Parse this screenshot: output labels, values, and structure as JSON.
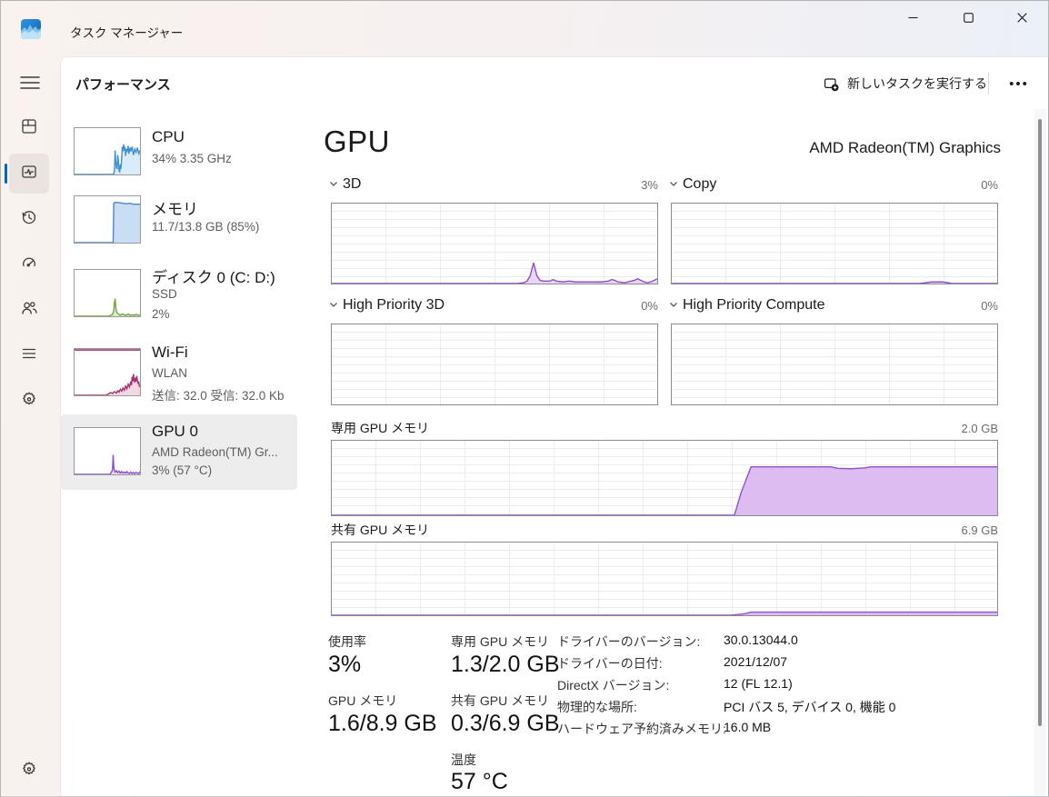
{
  "window": {
    "title": "タスク マネージャー"
  },
  "header": {
    "page_title": "パフォーマンス",
    "run_new_task_label": "新しいタスクを実行する",
    "more_label": "•••"
  },
  "left_panel": {
    "items": [
      {
        "title": "CPU",
        "line2": "34% 3.35 GHz",
        "line3": ""
      },
      {
        "title": "メモリ",
        "line2": "11.7/13.8 GB (85%)",
        "line3": ""
      },
      {
        "title": "ディスク 0 (C: D:)",
        "line2": "SSD",
        "line3": "2%"
      },
      {
        "title": "Wi-Fi",
        "line2": "WLAN",
        "line3": "送信: 32.0 受信: 32.0 Kb"
      },
      {
        "title": "GPU 0",
        "line2": "AMD Radeon(TM) Gr...",
        "line3": "3% (57 °C)"
      }
    ]
  },
  "main": {
    "title": "GPU",
    "subtitle": "AMD Radeon(TM) Graphics",
    "panels": [
      {
        "label": "3D",
        "value": "3%"
      },
      {
        "label": "Copy",
        "value": "0%"
      },
      {
        "label": "High Priority 3D",
        "value": "0%"
      },
      {
        "label": "High Priority Compute",
        "value": "0%"
      }
    ],
    "memory_sections": [
      {
        "label": "専用 GPU メモリ",
        "value": "2.0 GB"
      },
      {
        "label": "共有 GPU メモリ",
        "value": "6.9 GB"
      }
    ],
    "stats": [
      {
        "label": "使用率",
        "value": "3%"
      },
      {
        "label": "専用 GPU メモリ",
        "value": "1.3/2.0 GB"
      },
      {
        "label": "GPU メモリ",
        "value": "1.6/8.9 GB"
      },
      {
        "label": "共有 GPU メモリ",
        "value": "0.3/6.9 GB"
      },
      {
        "label": "温度",
        "value": "57 °C"
      }
    ],
    "driver_info": [
      {
        "label": "ドライバーのバージョン:",
        "value": "30.0.13044.0"
      },
      {
        "label": "ドライバーの日付:",
        "value": "2021/12/07"
      },
      {
        "label": "DirectX バージョン:",
        "value": "12 (FL 12.1)"
      },
      {
        "label": "物理的な場所:",
        "value": "PCI バス 5, デバイス 0, 機能 0"
      },
      {
        "label": "ハードウェア予約済みメモリ:",
        "value": "16.0 MB"
      }
    ]
  },
  "colors": {
    "accent": "#0067c0",
    "gpu_line": "#8e4ec7",
    "gpu_fill": "#e7d7f6",
    "cpu_line": "#4390ce",
    "cpu_fill": "#d9ecfa",
    "memory_line": "#4e86c8",
    "memory_fill": "#c9def4",
    "disk_line": "#76a23e",
    "disk_fill": "#dcead0",
    "wifi_line": "#a4336f",
    "wifi_fill": "#f2d7e5",
    "chart_grid": "#ececec",
    "chart_border": "#8b8b8b"
  },
  "chart_data": {
    "gpu_3d": {
      "type": "area",
      "title": "3D",
      "ylim": [
        0,
        100
      ],
      "unit": "%",
      "current": 3,
      "line": "#8e4ec7",
      "fill": "#e7d7f6",
      "points": [
        [
          0,
          0
        ],
        [
          57,
          0
        ],
        [
          59,
          1
        ],
        [
          60,
          3
        ],
        [
          61,
          10
        ],
        [
          62,
          26
        ],
        [
          63,
          10
        ],
        [
          64,
          4
        ],
        [
          65,
          3
        ],
        [
          67,
          3
        ],
        [
          68,
          5
        ],
        [
          69,
          3
        ],
        [
          71,
          2
        ],
        [
          73,
          3
        ],
        [
          75,
          2
        ],
        [
          77,
          2
        ],
        [
          79,
          2
        ],
        [
          81,
          2
        ],
        [
          83,
          2
        ],
        [
          85,
          3
        ],
        [
          86,
          5
        ],
        [
          87,
          4
        ],
        [
          88,
          2
        ],
        [
          90,
          1
        ],
        [
          91,
          2
        ],
        [
          93,
          4
        ],
        [
          94,
          6
        ],
        [
          95,
          4
        ],
        [
          96,
          2
        ],
        [
          97,
          1
        ],
        [
          98,
          2
        ],
        [
          99,
          4
        ],
        [
          100,
          6
        ]
      ]
    },
    "gpu_copy": {
      "type": "area",
      "title": "Copy",
      "ylim": [
        0,
        100
      ],
      "unit": "%",
      "current": 0,
      "line": "#8e4ec7",
      "fill": "#e7d7f6",
      "points": [
        [
          0,
          0
        ],
        [
          76,
          0
        ],
        [
          78,
          1
        ],
        [
          80,
          2
        ],
        [
          83,
          2
        ],
        [
          85,
          1
        ],
        [
          86,
          0
        ],
        [
          100,
          0
        ]
      ]
    },
    "gpu_hp3d": {
      "type": "area",
      "title": "High Priority 3D",
      "ylim": [
        0,
        100
      ],
      "unit": "%",
      "current": 0,
      "line": "#8e4ec7",
      "fill": "#e7d7f6",
      "points": []
    },
    "gpu_hpcompute": {
      "type": "area",
      "title": "High Priority Compute",
      "ylim": [
        0,
        100
      ],
      "unit": "%",
      "current": 0,
      "line": "#8e4ec7",
      "fill": "#e7d7f6",
      "points": []
    },
    "dedicated_memory": {
      "type": "area",
      "title": "専用 GPU メモリ",
      "ylim_gb": [
        0,
        2.0
      ],
      "current_gb": 1.3,
      "line": "#9353c9",
      "fill": "#dcbcf1",
      "points": [
        [
          0,
          0
        ],
        [
          60.5,
          0
        ],
        [
          61.5,
          30
        ],
        [
          63,
          65
        ],
        [
          75,
          65
        ],
        [
          76,
          63
        ],
        [
          78,
          62.5
        ],
        [
          80,
          63.5
        ],
        [
          81,
          65
        ],
        [
          100,
          65
        ]
      ]
    },
    "shared_memory": {
      "type": "area",
      "title": "共有 GPU メモリ",
      "ylim_gb": [
        0,
        6.9
      ],
      "current_gb": 0.3,
      "line": "#9353c9",
      "fill": "#dcbcf1",
      "points": [
        [
          0,
          0
        ],
        [
          60,
          0
        ],
        [
          62,
          2
        ],
        [
          63,
          4.3
        ],
        [
          100,
          4.3
        ]
      ]
    },
    "cpu_mini": {
      "type": "area",
      "title": "CPU",
      "ylim": [
        0,
        100
      ],
      "current": 34,
      "line": "#4390ce",
      "fill": "#d9ecfa",
      "points": [
        [
          0,
          0
        ],
        [
          60,
          0
        ],
        [
          61,
          10
        ],
        [
          62,
          52
        ],
        [
          63,
          28
        ],
        [
          64,
          15
        ],
        [
          65,
          12
        ],
        [
          66,
          42
        ],
        [
          67,
          30
        ],
        [
          68,
          8
        ],
        [
          69,
          6
        ],
        [
          70,
          22
        ],
        [
          71,
          12
        ],
        [
          73,
          60
        ],
        [
          74,
          50
        ],
        [
          75,
          65
        ],
        [
          76,
          52
        ],
        [
          77,
          60
        ],
        [
          78,
          40
        ],
        [
          79,
          55
        ],
        [
          80,
          48
        ],
        [
          82,
          62
        ],
        [
          83,
          45
        ],
        [
          85,
          58
        ],
        [
          86,
          50
        ],
        [
          88,
          60
        ],
        [
          90,
          42
        ],
        [
          92,
          55
        ],
        [
          94,
          48
        ],
        [
          96,
          58
        ],
        [
          98,
          45
        ],
        [
          100,
          52
        ]
      ]
    },
    "memory_mini": {
      "type": "area",
      "title": "メモリ",
      "ylim": [
        0,
        100
      ],
      "current": 85,
      "line": "#4e86c8",
      "fill": "#c9def4",
      "points": [
        [
          0,
          0
        ],
        [
          59,
          0
        ],
        [
          60,
          85
        ],
        [
          62,
          87
        ],
        [
          70,
          86
        ],
        [
          78,
          84
        ],
        [
          84,
          85
        ],
        [
          90,
          83
        ],
        [
          100,
          83
        ]
      ]
    },
    "disk_mini": {
      "type": "area",
      "title": "ディスク 0",
      "ylim": [
        0,
        100
      ],
      "current": 2,
      "line": "#76a23e",
      "fill": "#dcead0",
      "points": [
        [
          0,
          0
        ],
        [
          52,
          0
        ],
        [
          55,
          2
        ],
        [
          58,
          4
        ],
        [
          60,
          12
        ],
        [
          61,
          30
        ],
        [
          62,
          38
        ],
        [
          63,
          20
        ],
        [
          64,
          10
        ],
        [
          66,
          6
        ],
        [
          68,
          4
        ],
        [
          70,
          2
        ],
        [
          73,
          5
        ],
        [
          76,
          3
        ],
        [
          79,
          2
        ],
        [
          82,
          5
        ],
        [
          85,
          2
        ],
        [
          88,
          3
        ],
        [
          91,
          2
        ],
        [
          94,
          4
        ],
        [
          97,
          2
        ],
        [
          100,
          3
        ]
      ]
    },
    "wifi_mini": {
      "type": "area",
      "title": "Wi-Fi",
      "ylim": [
        0,
        100
      ],
      "topline": true,
      "line": "#a4336f",
      "fill": "#f2d7e5",
      "points": [
        [
          0,
          0
        ],
        [
          48,
          0
        ],
        [
          52,
          3
        ],
        [
          55,
          6
        ],
        [
          58,
          4
        ],
        [
          61,
          8
        ],
        [
          64,
          5
        ],
        [
          66,
          10
        ],
        [
          68,
          7
        ],
        [
          70,
          13
        ],
        [
          72,
          9
        ],
        [
          74,
          16
        ],
        [
          76,
          11
        ],
        [
          78,
          20
        ],
        [
          80,
          14
        ],
        [
          82,
          24
        ],
        [
          84,
          18
        ],
        [
          86,
          30
        ],
        [
          87,
          22
        ],
        [
          88,
          40
        ],
        [
          89,
          30
        ],
        [
          90,
          46
        ],
        [
          91,
          34
        ],
        [
          92,
          28
        ],
        [
          93,
          38
        ],
        [
          94,
          30
        ],
        [
          95,
          42
        ],
        [
          96,
          32
        ],
        [
          97,
          25
        ],
        [
          98,
          30
        ],
        [
          99,
          20
        ],
        [
          100,
          18
        ]
      ]
    },
    "gpu_mini": {
      "type": "area",
      "title": "GPU 0",
      "ylim": [
        0,
        100
      ],
      "current": 3,
      "line": "#8e4ec7",
      "fill": "#e7d7f6",
      "points": [
        [
          0,
          0
        ],
        [
          54,
          0
        ],
        [
          56,
          4
        ],
        [
          58,
          10
        ],
        [
          59,
          42
        ],
        [
          60,
          15
        ],
        [
          61,
          8
        ],
        [
          62,
          5
        ],
        [
          64,
          8
        ],
        [
          66,
          4
        ],
        [
          68,
          7
        ],
        [
          70,
          3
        ],
        [
          72,
          6
        ],
        [
          74,
          3
        ],
        [
          76,
          5
        ],
        [
          78,
          3
        ],
        [
          80,
          6
        ],
        [
          82,
          3
        ],
        [
          84,
          2
        ],
        [
          86,
          5
        ],
        [
          88,
          2
        ],
        [
          90,
          4
        ],
        [
          92,
          2
        ],
        [
          94,
          4
        ],
        [
          96,
          3
        ],
        [
          98,
          2
        ],
        [
          100,
          6
        ]
      ]
    }
  }
}
